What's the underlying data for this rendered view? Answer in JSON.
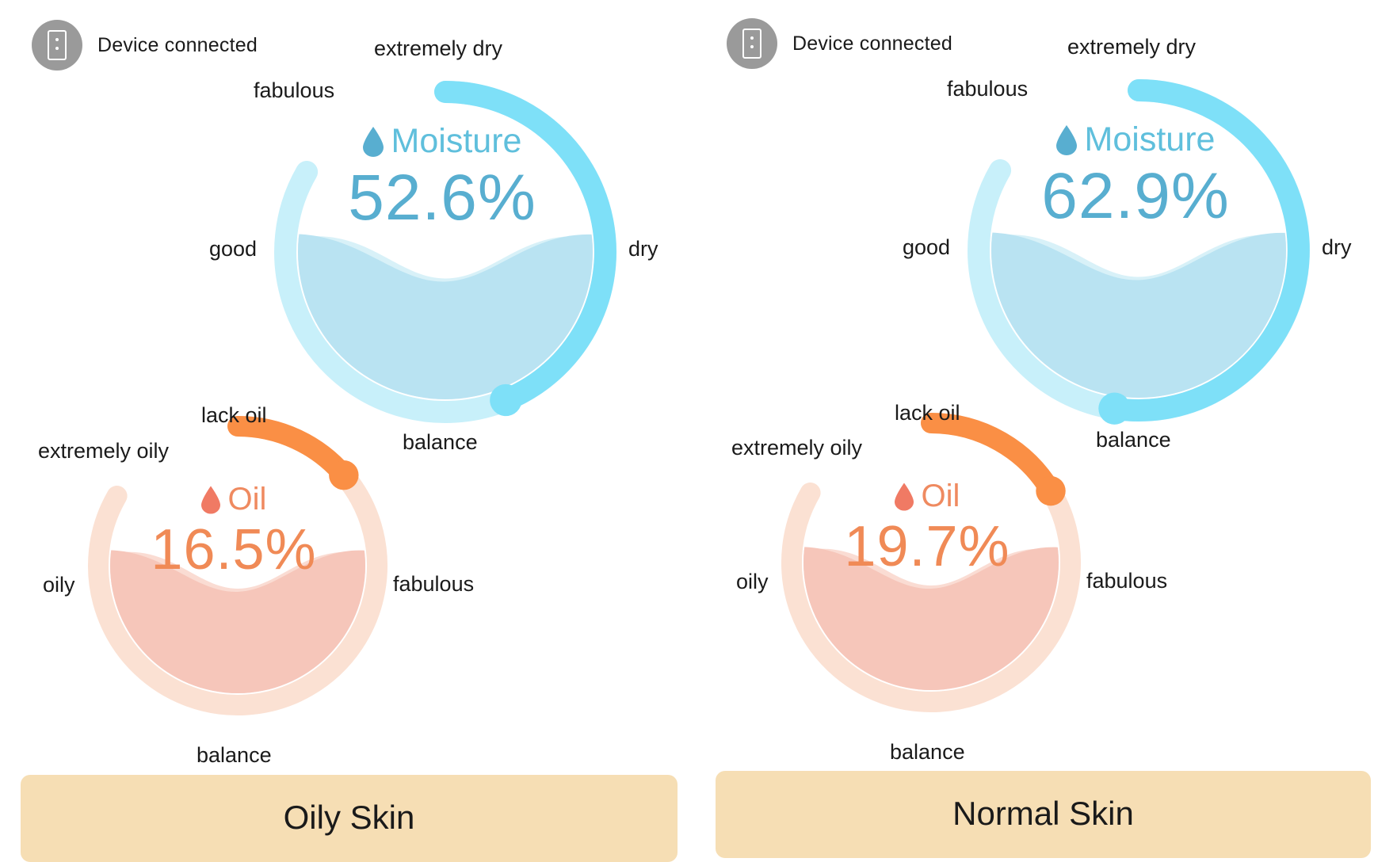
{
  "panels": [
    {
      "device_status": "Device connected",
      "moisture": {
        "title": "Moisture",
        "value": "52.6%",
        "level": 0.526,
        "labels": {
          "extremely_dry": "extremely dry",
          "fabulous": "fabulous",
          "good": "good",
          "dry": "dry",
          "balance": "balance"
        }
      },
      "oil": {
        "title": "Oil",
        "value": "16.5%",
        "level": 0.165,
        "labels": {
          "lack_oil": "lack oil",
          "extremely_oily": "extremely oily",
          "oily": "oily",
          "fabulous": "fabulous",
          "balance": "balance"
        }
      },
      "result": "Oily Skin"
    },
    {
      "device_status": "Device connected",
      "moisture": {
        "title": "Moisture",
        "value": "62.9%",
        "level": 0.629,
        "labels": {
          "extremely_dry": "extremely dry",
          "fabulous": "fabulous",
          "good": "good",
          "dry": "dry",
          "balance": "balance"
        }
      },
      "oil": {
        "title": "Oil",
        "value": "19.7%",
        "level": 0.197,
        "labels": {
          "lack_oil": "lack oil",
          "extremely_oily": "extremely oily",
          "oily": "oily",
          "fabulous": "fabulous",
          "balance": "balance"
        }
      },
      "result": "Normal Skin"
    }
  ],
  "colors": {
    "moisture_track": "#c8f0fa",
    "moisture_arc": "#7ee0f8",
    "moisture_water": "#b9e3f2",
    "moisture_water_light": "#d8f1f8",
    "oil_track": "#fbe1d3",
    "oil_arc": "#fa8f45",
    "oil_water": "#f6c6ba",
    "oil_water_light": "#fadcd3",
    "result_bar": "#f6deb4"
  },
  "icons": {
    "device": "phone-icon",
    "drop": "drop-icon"
  }
}
